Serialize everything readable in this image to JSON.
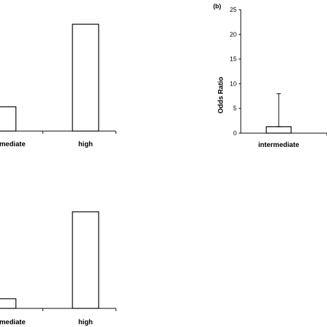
{
  "chart_data": [
    {
      "type": "bar",
      "panel_label": "",
      "categories": [
        "intermediate",
        "high"
      ],
      "visible_category_labels": [
        "mediate",
        "high"
      ],
      "values": [
        5,
        22
      ],
      "ylim": [
        0,
        25
      ],
      "xlabel": "",
      "ylabel": "",
      "grid": false,
      "legend": "none"
    },
    {
      "type": "bar",
      "panel_label": "(b)",
      "categories": [
        "intermediate"
      ],
      "visible_category_labels": [
        "intermediate"
      ],
      "values": [
        1.3
      ],
      "error_upper": [
        8
      ],
      "ylim": [
        0,
        25
      ],
      "yticks": [
        0,
        5,
        10,
        15,
        20,
        25
      ],
      "xlabel": "",
      "ylabel": "Odds Ratio",
      "grid": false,
      "legend": "none"
    },
    {
      "type": "bar",
      "panel_label": "",
      "categories": [
        "intermediate",
        "high"
      ],
      "visible_category_labels": [
        "mediate",
        "high"
      ],
      "values": [
        2,
        20
      ],
      "ylim": [
        0,
        25
      ],
      "xlabel": "",
      "ylabel": "",
      "grid": false,
      "legend": "none"
    }
  ],
  "colors": {
    "axis": "#000000",
    "bar_fill": "#ffffff",
    "bar_stroke": "#000000"
  }
}
